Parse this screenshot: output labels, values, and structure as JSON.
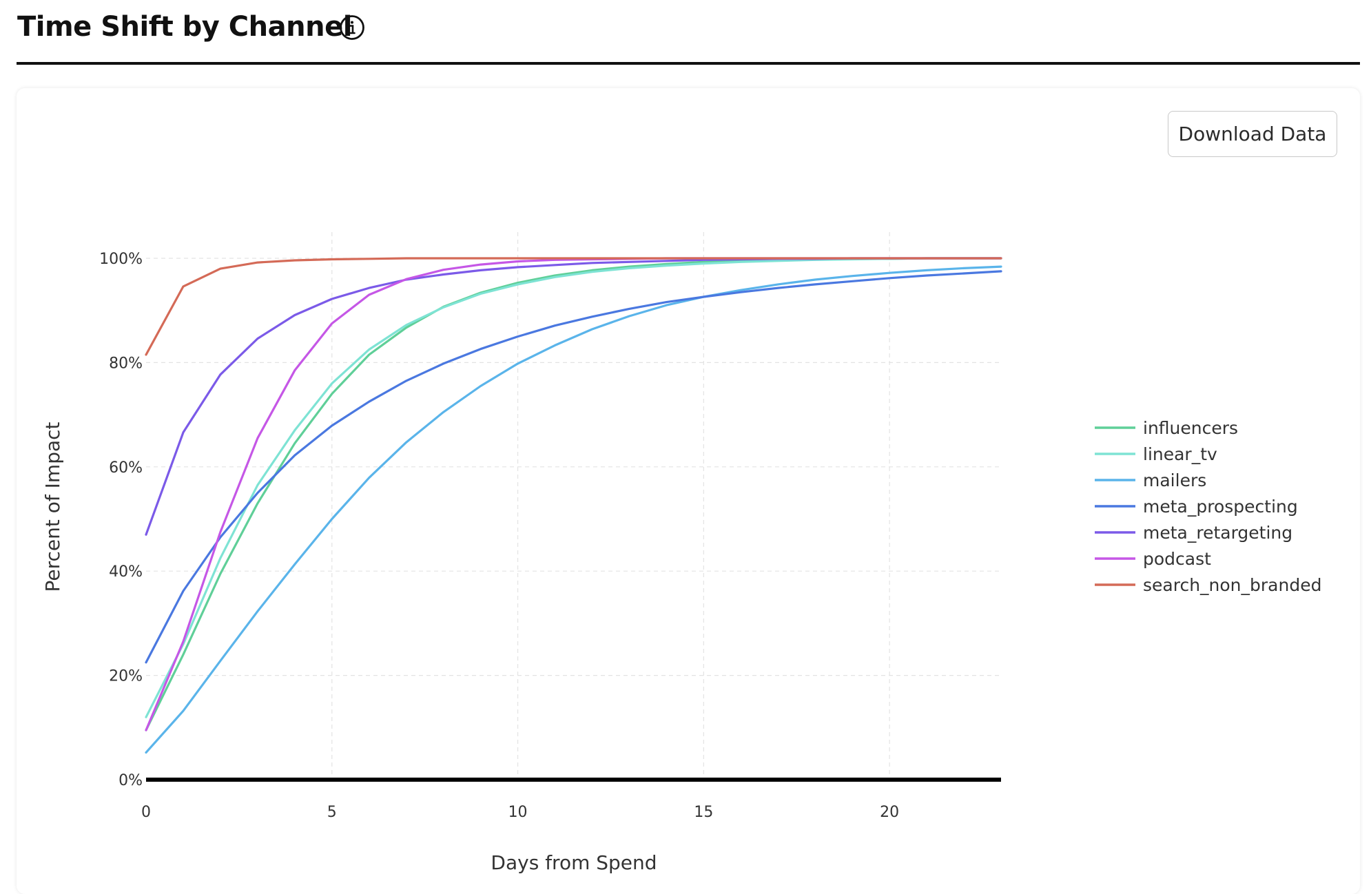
{
  "header": {
    "title": "Time Shift by Channel",
    "info_icon": "info-icon"
  },
  "toolbar": {
    "download_label": "Download Data"
  },
  "chart_data": {
    "type": "line",
    "xlabel": "Days from Spend",
    "ylabel": "Percent of Impact",
    "xlim": [
      0,
      23
    ],
    "ylim": [
      0,
      100
    ],
    "xticks": [
      0,
      5,
      10,
      15,
      20
    ],
    "yticks": [
      0,
      20,
      40,
      60,
      80,
      100
    ],
    "y_tick_suffix": "%",
    "grid": true,
    "legend_position": "right",
    "x": [
      0,
      1,
      2,
      3,
      4,
      5,
      6,
      7,
      8,
      9,
      10,
      11,
      12,
      13,
      14,
      15,
      16,
      17,
      18,
      19,
      20,
      21,
      22,
      23
    ],
    "series": [
      {
        "name": "influencers",
        "color": "#5fcf98",
        "values": [
          9.5,
          24,
          39.5,
          53,
          64.5,
          74,
          81.5,
          86.7,
          90.7,
          93.4,
          95.3,
          96.7,
          97.7,
          98.4,
          98.9,
          99.3,
          99.5,
          99.7,
          99.8,
          99.9,
          99.9,
          100,
          100,
          100
        ]
      },
      {
        "name": "linear_tv",
        "color": "#7ee3d4",
        "values": [
          12,
          26,
          42.5,
          56.5,
          67,
          76,
          82.5,
          87.2,
          90.6,
          93.2,
          95,
          96.4,
          97.4,
          98.1,
          98.6,
          99,
          99.3,
          99.5,
          99.7,
          99.8,
          99.9,
          100,
          100,
          100
        ]
      },
      {
        "name": "mailers",
        "color": "#5ab4ea",
        "values": [
          5.2,
          13.2,
          22.8,
          32.3,
          41.3,
          50,
          57.9,
          64.7,
          70.5,
          75.5,
          79.8,
          83.3,
          86.4,
          88.9,
          91,
          92.6,
          93.9,
          95,
          95.9,
          96.6,
          97.2,
          97.7,
          98.1,
          98.4
        ]
      },
      {
        "name": "meta_prospecting",
        "color": "#4a78e0",
        "values": [
          22.5,
          36.2,
          46.5,
          55,
          62.2,
          67.9,
          72.5,
          76.5,
          79.8,
          82.6,
          85,
          87.1,
          88.8,
          90.3,
          91.6,
          92.6,
          93.5,
          94.3,
          95,
          95.6,
          96.2,
          96.7,
          97.1,
          97.5
        ]
      },
      {
        "name": "meta_retargeting",
        "color": "#7b5ae8",
        "values": [
          47,
          66.6,
          77.7,
          84.6,
          89.1,
          92.2,
          94.3,
          95.9,
          96.9,
          97.7,
          98.3,
          98.7,
          99.1,
          99.3,
          99.5,
          99.7,
          99.8,
          99.9,
          99.9,
          100,
          100,
          100,
          100,
          100
        ]
      },
      {
        "name": "podcast",
        "color": "#c557e6",
        "values": [
          9.5,
          26.5,
          47.5,
          65.5,
          78.5,
          87.5,
          93,
          96,
          97.8,
          98.8,
          99.4,
          99.7,
          99.8,
          99.9,
          100,
          100,
          100,
          100,
          100,
          100,
          100,
          100,
          100,
          100
        ]
      },
      {
        "name": "search_non_branded",
        "color": "#d46a57",
        "values": [
          81.5,
          94.6,
          98,
          99.2,
          99.6,
          99.8,
          99.9,
          100,
          100,
          100,
          100,
          100,
          100,
          100,
          100,
          100,
          100,
          100,
          100,
          100,
          100,
          100,
          100,
          100
        ]
      }
    ]
  }
}
